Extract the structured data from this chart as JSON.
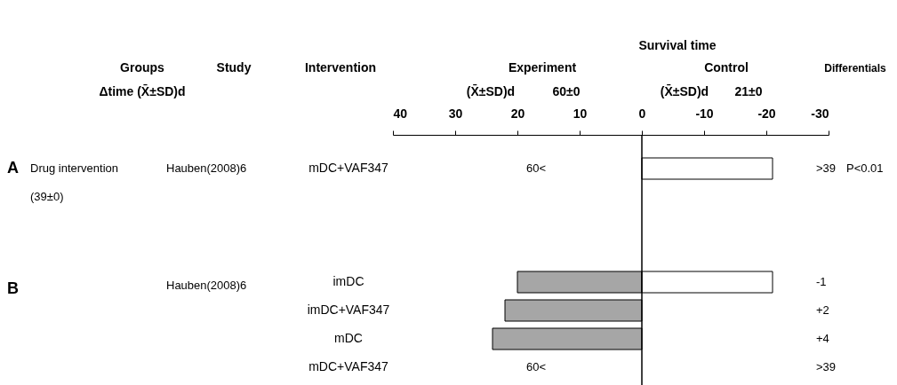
{
  "chart_data": {
    "type": "bar",
    "orientation": "horizontal",
    "categories": [
      "mDC+VAF347",
      null,
      null,
      null,
      "imDC",
      "imDC+VAF347",
      "mDC",
      "mDC+VAF347"
    ],
    "series": [
      {
        "color": "#a6a6a6",
        "values": [
          null,
          null,
          null,
          null,
          20,
          22,
          24,
          null
        ],
        "value_labels": [
          "60<",
          null,
          null,
          null,
          null,
          null,
          null,
          "60<"
        ]
      },
      {
        "color": "#ffffff",
        "values": [
          -21,
          null,
          null,
          null,
          -21,
          null,
          null,
          null
        ]
      }
    ],
    "xlim": [
      40,
      -30
    ],
    "xticks": [
      40,
      30,
      20,
      10,
      0,
      -10,
      -20,
      -30
    ],
    "ref_lines": [
      {
        "axis": "x",
        "value": 0
      }
    ],
    "grid": false,
    "annotations": [
      "Groups",
      "Δtime (X̄±SD)d",
      "Study",
      "Intervention",
      "Survival time",
      "Experiment",
      "(X̄±SD)d",
      "60±0",
      "Control",
      "(X̄±SD)d",
      "21±0",
      "Differentials",
      "A",
      "Drug intervention",
      "(39±0)",
      "Hauben(2008)6",
      ">39",
      "P<0.01",
      "B",
      "Hauben(2008)6",
      "-1",
      "+2",
      "+4",
      ">39"
    ]
  }
}
